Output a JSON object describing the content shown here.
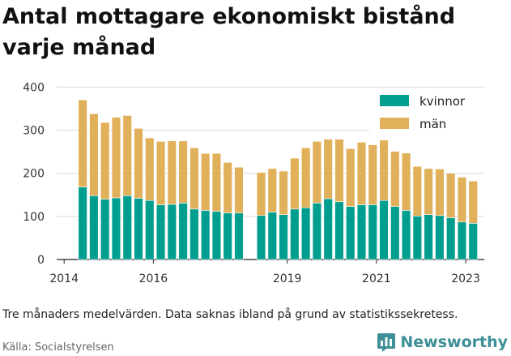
{
  "title": "Antal mottagare ekonomiskt bistånd varje månad",
  "note": "Tre månaders medelvärden. Data saknas ibland på grund av statistikssekretess.",
  "source": "Källa: Socialstyrelsen",
  "brand": {
    "name": "Newsworthy",
    "color": "#3d8f97"
  },
  "chart_data": {
    "type": "bar",
    "stacked": true,
    "x_start": "2014-06",
    "x_step_months": 3,
    "x_range": [
      "2013-11",
      "2023-06"
    ],
    "x_ticks": [
      "2014",
      "2016",
      "2019",
      "2021",
      "2023"
    ],
    "y_ticks": [
      "0",
      "100",
      "200",
      "300",
      "400"
    ],
    "ylim": [
      0,
      410
    ],
    "grid": true,
    "legend_position": "top-right",
    "series": [
      {
        "name": "kvinnor",
        "color": "#009e8e",
        "values": [
          168,
          148,
          140,
          143,
          148,
          142,
          137,
          127,
          128,
          131,
          117,
          114,
          112,
          108,
          108,
          null,
          102,
          110,
          104,
          117,
          120,
          131,
          141,
          134,
          123,
          127,
          127,
          137,
          123,
          114,
          101,
          104,
          102,
          97,
          87,
          84
        ]
      },
      {
        "name": "män",
        "color": "#e0b05a",
        "values": [
          202,
          190,
          178,
          187,
          186,
          162,
          145,
          147,
          147,
          144,
          142,
          132,
          134,
          117,
          106,
          null,
          100,
          101,
          101,
          118,
          139,
          143,
          138,
          145,
          134,
          145,
          139,
          140,
          128,
          133,
          115,
          107,
          108,
          103,
          104,
          98
        ]
      }
    ]
  }
}
